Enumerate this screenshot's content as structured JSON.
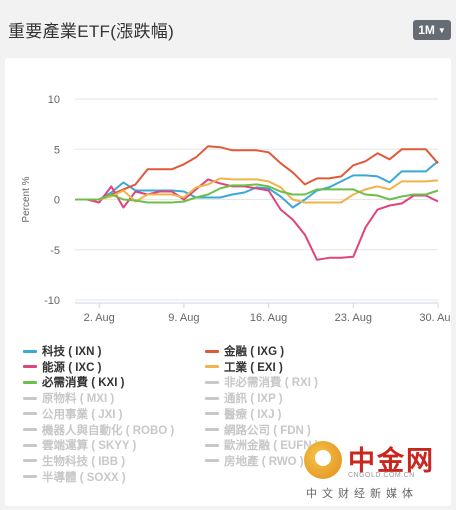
{
  "header": {
    "title": "重要產業ETF(漲跌幅)",
    "range_label": "1M",
    "range_caret": "▼"
  },
  "watermark": {
    "name": "中金网",
    "domain": "CNGOLD.COM.CN",
    "sub": "中文财经新媒体"
  },
  "chart_data": {
    "type": "line",
    "title": "",
    "xlabel": "",
    "ylabel": "Percent %",
    "ylim": [
      -10,
      10
    ],
    "yticks": [
      10,
      5,
      0,
      -5,
      -10
    ],
    "x_start_day": 31,
    "x_ticks": [
      {
        "label": "2. Aug",
        "day": 33
      },
      {
        "label": "9. Aug",
        "day": 40
      },
      {
        "label": "16. Aug",
        "day": 47
      },
      {
        "label": "23. Aug",
        "day": 54
      },
      {
        "label": "30. Aug",
        "day": 61
      }
    ],
    "grid": true,
    "legend_position": "bottom",
    "colors": {
      "tech": "#3aa8d8",
      "finance": "#e05a3a",
      "energy": "#e0437e",
      "industrial": "#f0b44a",
      "staples": "#6cc04a",
      "inactive": "#c8c8c8"
    },
    "series": [
      {
        "name": "科技 ( IXN )",
        "color": "#3aa8d8",
        "points": [
          [
            31,
            0
          ],
          [
            32,
            0
          ],
          [
            33,
            0
          ],
          [
            34,
            0.7
          ],
          [
            35,
            1.7
          ],
          [
            36,
            0.9
          ],
          [
            37,
            0.9
          ],
          [
            38,
            0.9
          ],
          [
            39,
            0.9
          ],
          [
            40,
            0.8
          ],
          [
            41,
            0.2
          ],
          [
            42,
            0.2
          ],
          [
            43,
            0.2
          ],
          [
            44,
            0.5
          ],
          [
            45,
            0.7
          ],
          [
            46,
            1.2
          ],
          [
            47,
            1.1
          ],
          [
            48,
            0.3
          ],
          [
            49,
            -0.8
          ],
          [
            50,
            0
          ],
          [
            51,
            0.9
          ],
          [
            52,
            1.2
          ],
          [
            53,
            1.8
          ],
          [
            54,
            2.4
          ],
          [
            55,
            2.4
          ],
          [
            56,
            2.3
          ],
          [
            57,
            1.7
          ],
          [
            58,
            2.8
          ],
          [
            59,
            2.8
          ],
          [
            60,
            2.8
          ],
          [
            61,
            3.8
          ]
        ]
      },
      {
        "name": "金融 ( IXG )",
        "color": "#e05a3a",
        "points": [
          [
            31,
            0
          ],
          [
            32,
            0
          ],
          [
            33,
            0
          ],
          [
            34,
            0.5
          ],
          [
            35,
            1.0
          ],
          [
            36,
            1.5
          ],
          [
            37,
            3.0
          ],
          [
            38,
            3.0
          ],
          [
            39,
            3.0
          ],
          [
            40,
            3.5
          ],
          [
            41,
            4.2
          ],
          [
            42,
            5.3
          ],
          [
            43,
            5.2
          ],
          [
            44,
            4.9
          ],
          [
            45,
            4.9
          ],
          [
            46,
            4.9
          ],
          [
            47,
            4.7
          ],
          [
            48,
            3.6
          ],
          [
            49,
            2.7
          ],
          [
            50,
            1.5
          ],
          [
            51,
            2.1
          ],
          [
            52,
            2.1
          ],
          [
            53,
            2.3
          ],
          [
            54,
            3.4
          ],
          [
            55,
            3.8
          ],
          [
            56,
            4.6
          ],
          [
            57,
            4.0
          ],
          [
            58,
            5.0
          ],
          [
            59,
            5.0
          ],
          [
            60,
            5.0
          ],
          [
            61,
            3.6
          ]
        ]
      },
      {
        "name": "能源 ( IXC )",
        "color": "#e0437e",
        "points": [
          [
            31,
            0
          ],
          [
            32,
            0
          ],
          [
            33,
            -0.3
          ],
          [
            34,
            1.3
          ],
          [
            35,
            -0.8
          ],
          [
            36,
            0.8
          ],
          [
            37,
            0.5
          ],
          [
            38,
            0.8
          ],
          [
            39,
            0.8
          ],
          [
            40,
            0
          ],
          [
            41,
            1.0
          ],
          [
            42,
            2.0
          ],
          [
            43,
            1.6
          ],
          [
            44,
            1.3
          ],
          [
            45,
            1.3
          ],
          [
            46,
            1.1
          ],
          [
            47,
            0.9
          ],
          [
            48,
            -1.0
          ],
          [
            49,
            -2.0
          ],
          [
            50,
            -3.5
          ],
          [
            51,
            -6.0
          ],
          [
            52,
            -5.8
          ],
          [
            53,
            -5.8
          ],
          [
            54,
            -5.7
          ],
          [
            55,
            -2.8
          ],
          [
            56,
            -1.0
          ],
          [
            57,
            -0.6
          ],
          [
            58,
            -0.4
          ],
          [
            59,
            0.4
          ],
          [
            60,
            0.4
          ],
          [
            61,
            -0.2
          ]
        ]
      },
      {
        "name": "工業 ( EXI )",
        "color": "#f0b44a",
        "points": [
          [
            31,
            0
          ],
          [
            32,
            0
          ],
          [
            33,
            0
          ],
          [
            34,
            0.3
          ],
          [
            35,
            0.9
          ],
          [
            36,
            -0.2
          ],
          [
            37,
            0.5
          ],
          [
            38,
            0.5
          ],
          [
            39,
            0.5
          ],
          [
            40,
            0.2
          ],
          [
            41,
            1.2
          ],
          [
            42,
            1.5
          ],
          [
            43,
            2.1
          ],
          [
            44,
            2.0
          ],
          [
            45,
            2.0
          ],
          [
            46,
            2.0
          ],
          [
            47,
            1.8
          ],
          [
            48,
            1.2
          ],
          [
            49,
            0
          ],
          [
            50,
            -0.3
          ],
          [
            51,
            -0.3
          ],
          [
            52,
            -0.3
          ],
          [
            53,
            -0.3
          ],
          [
            54,
            0.5
          ],
          [
            55,
            1.0
          ],
          [
            56,
            1.3
          ],
          [
            57,
            1.0
          ],
          [
            58,
            1.8
          ],
          [
            59,
            1.8
          ],
          [
            60,
            1.8
          ],
          [
            61,
            1.9
          ]
        ]
      },
      {
        "name": "必需消費 ( KXI )",
        "color": "#6cc04a",
        "points": [
          [
            31,
            0
          ],
          [
            32,
            0
          ],
          [
            33,
            0
          ],
          [
            34,
            0.5
          ],
          [
            35,
            0
          ],
          [
            36,
            -0.1
          ],
          [
            37,
            -0.3
          ],
          [
            38,
            -0.3
          ],
          [
            39,
            -0.3
          ],
          [
            40,
            -0.2
          ],
          [
            41,
            0.2
          ],
          [
            42,
            0.5
          ],
          [
            43,
            1.1
          ],
          [
            44,
            1.4
          ],
          [
            45,
            1.4
          ],
          [
            46,
            1.5
          ],
          [
            47,
            1.3
          ],
          [
            48,
            0.8
          ],
          [
            49,
            0.5
          ],
          [
            50,
            0.5
          ],
          [
            51,
            1.0
          ],
          [
            52,
            1.0
          ],
          [
            53,
            1.0
          ],
          [
            54,
            1.0
          ],
          [
            55,
            0.5
          ],
          [
            56,
            0.4
          ],
          [
            57,
            0
          ],
          [
            58,
            0.3
          ],
          [
            59,
            0.5
          ],
          [
            60,
            0.5
          ],
          [
            61,
            0.9
          ]
        ]
      }
    ],
    "legend": [
      {
        "label": "科技 ( IXN )",
        "color": "#3aa8d8",
        "active": true
      },
      {
        "label": "金融 ( IXG )",
        "color": "#e05a3a",
        "active": true
      },
      {
        "label": "能源 ( IXC )",
        "color": "#e0437e",
        "active": true
      },
      {
        "label": "工業 ( EXI )",
        "color": "#f0b44a",
        "active": true
      },
      {
        "label": "必需消費 ( KXI )",
        "color": "#6cc04a",
        "active": true
      },
      {
        "label": "非必需消費 ( RXI )",
        "color": "#c8c8c8",
        "active": false
      },
      {
        "label": "原物料 ( MXI )",
        "color": "#c8c8c8",
        "active": false
      },
      {
        "label": "通訊 ( IXP )",
        "color": "#c8c8c8",
        "active": false
      },
      {
        "label": "公用事業 ( JXI )",
        "color": "#c8c8c8",
        "active": false
      },
      {
        "label": "醫療 ( IXJ )",
        "color": "#c8c8c8",
        "active": false
      },
      {
        "label": "機器人與自動化 ( ROBO )",
        "color": "#c8c8c8",
        "active": false
      },
      {
        "label": "網路公司 ( FDN )",
        "color": "#c8c8c8",
        "active": false
      },
      {
        "label": "雲端運算 ( SKYY )",
        "color": "#c8c8c8",
        "active": false
      },
      {
        "label": "歐洲金融 ( EUFN )",
        "color": "#c8c8c8",
        "active": false
      },
      {
        "label": "生物科技 ( IBB )",
        "color": "#c8c8c8",
        "active": false
      },
      {
        "label": "房地產 ( RWO )",
        "color": "#c8c8c8",
        "active": false
      },
      {
        "label": "半導體 ( SOXX )",
        "color": "#c8c8c8",
        "active": false
      }
    ]
  }
}
